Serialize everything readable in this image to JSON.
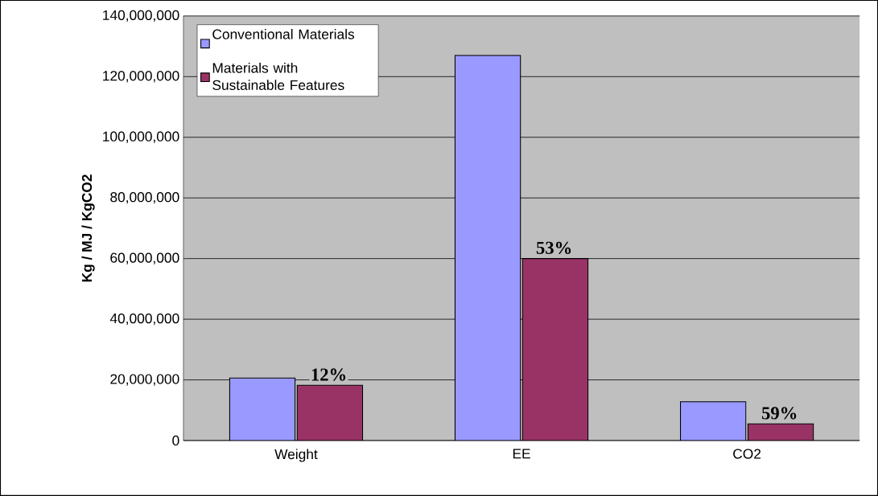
{
  "chart_data": {
    "type": "bar",
    "ylabel": "Kg / MJ / KgCO2",
    "categories": [
      "Weight",
      "EE",
      "CO2"
    ],
    "series": [
      {
        "name": "Conventional Materials",
        "color": "#9999ff",
        "values": [
          20600000,
          127000000,
          12800000
        ]
      },
      {
        "name": "Materials with Sustainable Features",
        "color": "#993366",
        "values": [
          18200000,
          60000000,
          5500000
        ]
      }
    ],
    "ylim": [
      0,
      140000000
    ],
    "yticks": [
      {
        "value": 0,
        "label": "0"
      },
      {
        "value": 20000000,
        "label": "20,000,000"
      },
      {
        "value": 40000000,
        "label": "40,000,000"
      },
      {
        "value": 60000000,
        "label": "60,000,000"
      },
      {
        "value": 80000000,
        "label": "80,000,000"
      },
      {
        "value": 100000000,
        "label": "100,000,000"
      },
      {
        "value": 120000000,
        "label": "120,000,000"
      },
      {
        "value": 140000000,
        "label": "140,000,000"
      }
    ],
    "grid": "y",
    "legend": "top left",
    "annotations": [
      {
        "text": "12%",
        "x": "Weight",
        "y": 18200000
      },
      {
        "text": "53%",
        "x": "EE",
        "y": 60000000
      },
      {
        "text": "59%",
        "x": "CO2",
        "y": 5500000
      }
    ]
  }
}
